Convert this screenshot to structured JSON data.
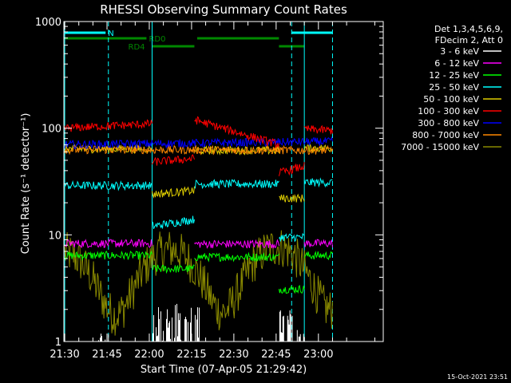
{
  "chart_data": {
    "type": "line",
    "title": "RHESSI Observing Summary Count Rates",
    "xlabel": "Start Time (07-Apr-05 21:29:42)",
    "ylabel": "Count Rate (s⁻¹ detector⁻¹)",
    "yscale": "log",
    "ylim": [
      1,
      1000
    ],
    "xlim_min": [
      -0.3,
      113
    ],
    "y_ticks": [
      {
        "value": 1,
        "label": "1"
      },
      {
        "value": 10,
        "label": "10"
      },
      {
        "value": 100,
        "label": "100"
      },
      {
        "value": 1000,
        "label": "1000"
      }
    ],
    "x_ticks": [
      {
        "value": 0,
        "label": "21:30"
      },
      {
        "value": 15,
        "label": "21:45"
      },
      {
        "value": 30,
        "label": "22:00"
      },
      {
        "value": 45,
        "label": "22:15"
      },
      {
        "value": 60,
        "label": "22:30"
      },
      {
        "value": 75,
        "label": "22:45"
      },
      {
        "value": 90,
        "label": "23:00"
      }
    ],
    "legend_header": [
      "Det 1,3,4,5,6,9,",
      "FDecim 2, Att 0"
    ],
    "legend_placement": "right",
    "series": [
      {
        "name": "3 - 6 keV",
        "color": "#ffffff",
        "style": "spiky",
        "segments": [
          {
            "x": [
              12,
              15.5
            ],
            "y": [
              1,
              1.2
            ]
          },
          {
            "x": [
              31,
              48
            ],
            "y": [
              1,
              2.3
            ]
          },
          {
            "x": [
              76,
              81
            ],
            "y": [
              1,
              2.0
            ]
          },
          {
            "x": [
              82.5,
              85
            ],
            "y": [
              1,
              1.3
            ]
          }
        ]
      },
      {
        "name": "6 - 12 keV",
        "color": "#ff00ff",
        "segments": [
          {
            "x": [
              0,
              31
            ],
            "y": [
              8.3,
              8.3
            ]
          },
          {
            "x": [
              46,
              76
            ],
            "y": [
              8.2,
              8.2
            ]
          },
          {
            "x": [
              85,
              95
            ],
            "y": [
              8.3,
              8.3
            ]
          }
        ]
      },
      {
        "name": "12 - 25 keV",
        "color": "#00ff00",
        "segments": [
          {
            "x": [
              0,
              31
            ],
            "y": [
              6.4,
              6.4
            ]
          },
          {
            "x": [
              31,
              46
            ],
            "y": [
              4.8,
              4.8
            ]
          },
          {
            "x": [
              46,
              76
            ],
            "y": [
              6.2,
              6.2
            ]
          },
          {
            "x": [
              76,
              85
            ],
            "y": [
              3.1,
              3.1
            ]
          },
          {
            "x": [
              85,
              95
            ],
            "y": [
              6.4,
              6.4
            ]
          }
        ]
      },
      {
        "name": "25 - 50 keV",
        "color": "#00ffff",
        "segments": [
          {
            "x": [
              0,
              31
            ],
            "y": [
              29,
              29
            ]
          },
          {
            "x": [
              31,
              46
            ],
            "y": [
              12,
              14
            ]
          },
          {
            "x": [
              46,
              76
            ],
            "y": [
              30,
              30
            ]
          },
          {
            "x": [
              76,
              85
            ],
            "y": [
              9.5,
              9.5
            ]
          },
          {
            "x": [
              85,
              95
            ],
            "y": [
              31,
              31
            ]
          }
        ]
      },
      {
        "name": "50 - 100 keV",
        "color": "#ddcc00",
        "segments": [
          {
            "x": [
              0,
              31
            ],
            "y": [
              64,
              64
            ]
          },
          {
            "x": [
              31,
              46
            ],
            "y": [
              24,
              26
            ]
          },
          {
            "x": [
              46,
              76
            ],
            "y": [
              62,
              62
            ]
          },
          {
            "x": [
              76,
              85
            ],
            "y": [
              22,
              22
            ]
          },
          {
            "x": [
              85,
              95
            ],
            "y": [
              65,
              65
            ]
          }
        ]
      },
      {
        "name": "100 - 300 keV",
        "color": "#ff0000",
        "segments": [
          {
            "x": [
              0,
              31
            ],
            "y": [
              100,
              110
            ]
          },
          {
            "x": [
              31,
              46
            ],
            "y": [
              48,
              52
            ]
          },
          {
            "x": [
              46,
              76
            ],
            "y": [
              120,
              70
            ]
          },
          {
            "x": [
              76,
              85
            ],
            "y": [
              38,
              44
            ]
          },
          {
            "x": [
              85,
              95
            ],
            "y": [
              98,
              95
            ]
          }
        ]
      },
      {
        "name": "300 - 800 keV",
        "color": "#0000ff",
        "segments": [
          {
            "x": [
              0,
              95
            ],
            "y": [
              70,
              75
            ]
          }
        ]
      },
      {
        "name": "800 - 7000 keV",
        "color": "#ff8800",
        "segments": [
          {
            "x": [
              0,
              95
            ],
            "y": [
              63,
              62
            ]
          }
        ]
      },
      {
        "name": "7000 - 15000 keV",
        "color": "#888800",
        "style": "noisy",
        "segments": [
          {
            "x": [
              0,
              95
            ],
            "y": [
              4.3,
              5.0
            ]
          }
        ]
      }
    ],
    "annotations": {
      "status_bars": [
        {
          "label": "N",
          "color": "#00ffff",
          "segments": [
            [
              0,
              14.5
            ],
            [
              80.5,
              95
            ]
          ]
        },
        {
          "label": "RD0",
          "color": "#008800",
          "segments": [
            [
              0,
              29
            ],
            [
              47,
              76
            ]
          ]
        },
        {
          "label": "RD4",
          "color": "#008800",
          "segments": [
            [
              31,
              46
            ],
            [
              76,
              85
            ]
          ]
        }
      ],
      "dashed_lines_x": [
        15.5,
        80.5,
        95
      ],
      "solid_lines_x": [
        0,
        31,
        85
      ]
    },
    "footer_timestamp": "15-Oct-2021 23:51"
  }
}
